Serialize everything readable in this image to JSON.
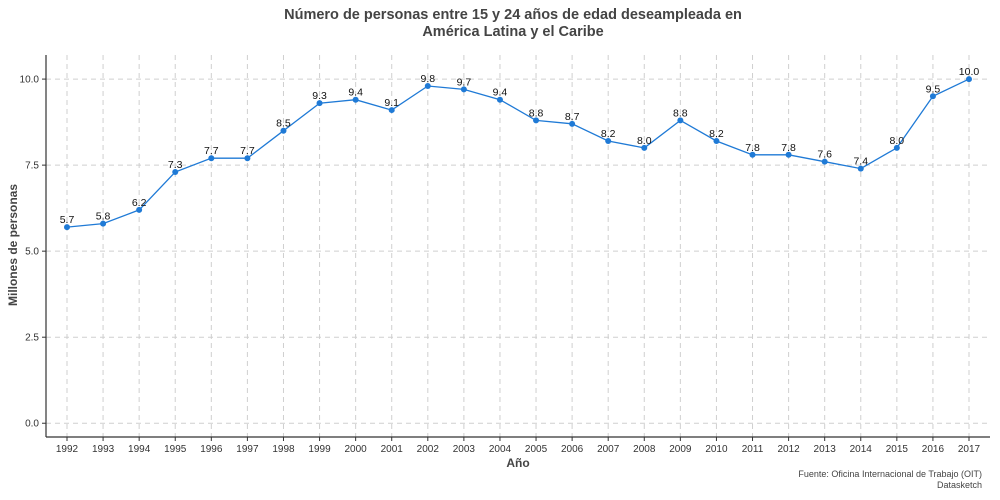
{
  "chart_data": {
    "type": "line",
    "title_lines": [
      "Número de personas entre 15 y 24 años de edad deseampleada en",
      "América Latina y el Caribe"
    ],
    "xlabel": "Año",
    "ylabel": "Millones de personas",
    "x": [
      1992,
      1993,
      1994,
      1995,
      1996,
      1997,
      1998,
      1999,
      2000,
      2001,
      2002,
      2003,
      2004,
      2005,
      2006,
      2007,
      2008,
      2009,
      2010,
      2011,
      2012,
      2013,
      2014,
      2015,
      2016,
      2017
    ],
    "y": [
      5.7,
      5.8,
      6.2,
      7.3,
      7.7,
      7.7,
      8.5,
      9.3,
      9.4,
      9.1,
      9.8,
      9.7,
      9.4,
      8.8,
      8.7,
      8.2,
      8.0,
      8.8,
      8.2,
      7.8,
      7.8,
      7.6,
      7.4,
      8.0,
      9.5,
      10.0
    ],
    "yticks": [
      "0.0",
      "2.5",
      "5.0",
      "7.5",
      "10.0"
    ],
    "ylim": [
      -0.4,
      10.7
    ],
    "grid": true,
    "line_color": "#1f7ad6"
  },
  "caption": {
    "source": "Fuente: Oficina Internacional de Trabajo (OIT)",
    "credit": "Datasketch"
  }
}
